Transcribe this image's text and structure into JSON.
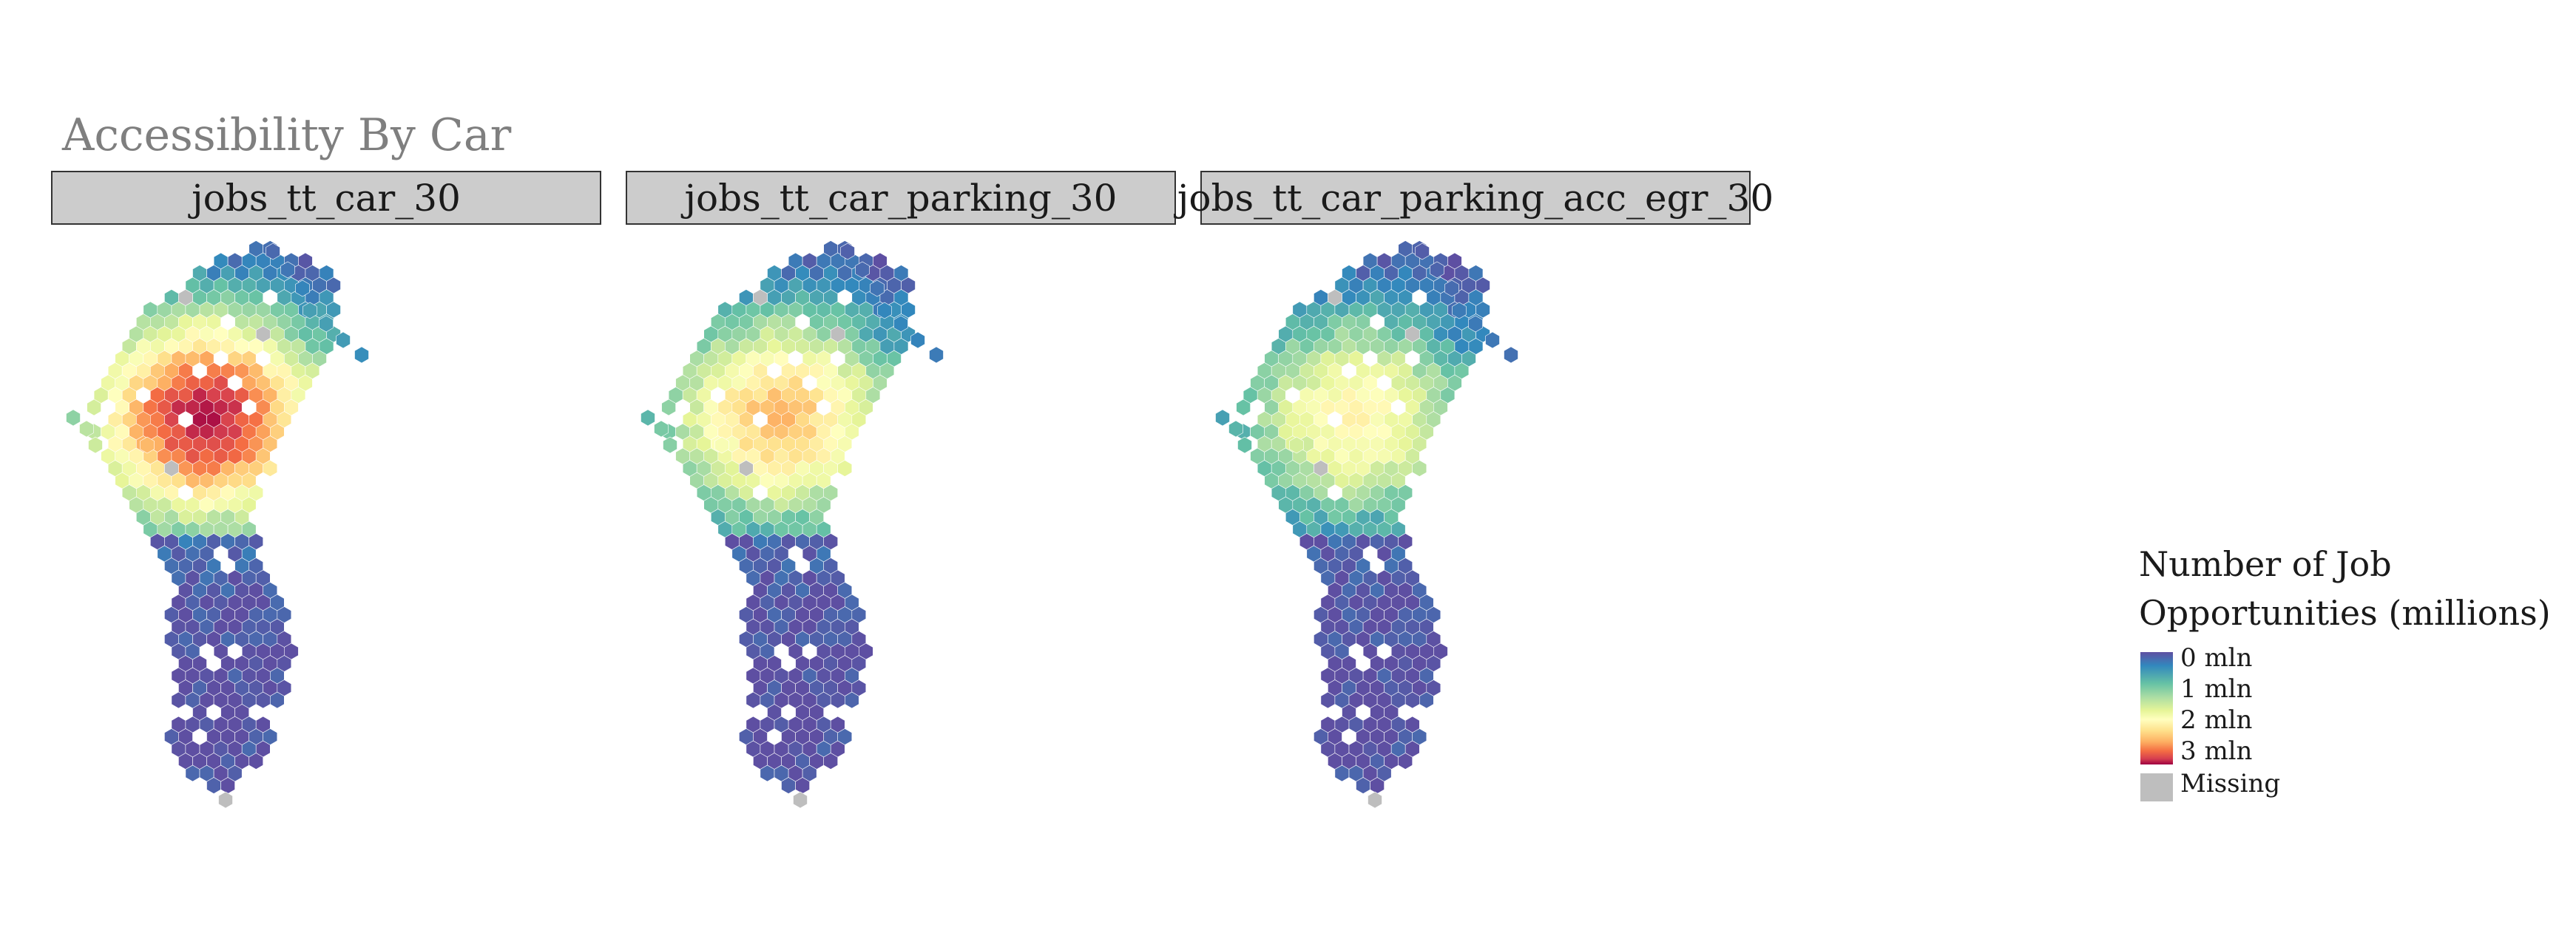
{
  "title": "Accessibility By Car",
  "facets": [
    {
      "label": "jobs_tt_car_30",
      "peak_mln": 3.3
    },
    {
      "label": "jobs_tt_car_parking_30",
      "peak_mln": 2.3
    },
    {
      "label": "jobs_tt_car_parking_acc_egr_30",
      "peak_mln": 1.8
    }
  ],
  "legend": {
    "title_line1": "Number of Job",
    "title_line2": "Opportunities (millions)",
    "ticks": [
      "0 mln",
      "1 mln",
      "2 mln",
      "3 mln"
    ],
    "missing": "Missing"
  },
  "colors": {
    "palette": [
      "#5e4fa2",
      "#3288bd",
      "#66c2a5",
      "#abdda4",
      "#e6f598",
      "#ffffbf",
      "#fee08b",
      "#fdae61",
      "#f46d43",
      "#d53e4f",
      "#9e0142"
    ],
    "missing": "#bebebe",
    "strip_fill": "#cccccc",
    "title": "#7f7f7f"
  },
  "chart_data": {
    "type": "heatmap",
    "geometry": "hexagonal choropleth",
    "panels": [
      "jobs_tt_car_30",
      "jobs_tt_car_parking_30",
      "jobs_tt_car_parking_acc_egr_30"
    ],
    "color_scale": {
      "palette": "Spectral (reversed)",
      "min": 0,
      "max": 3.5,
      "unit": "mln"
    },
    "legend_placement": "right"
  }
}
